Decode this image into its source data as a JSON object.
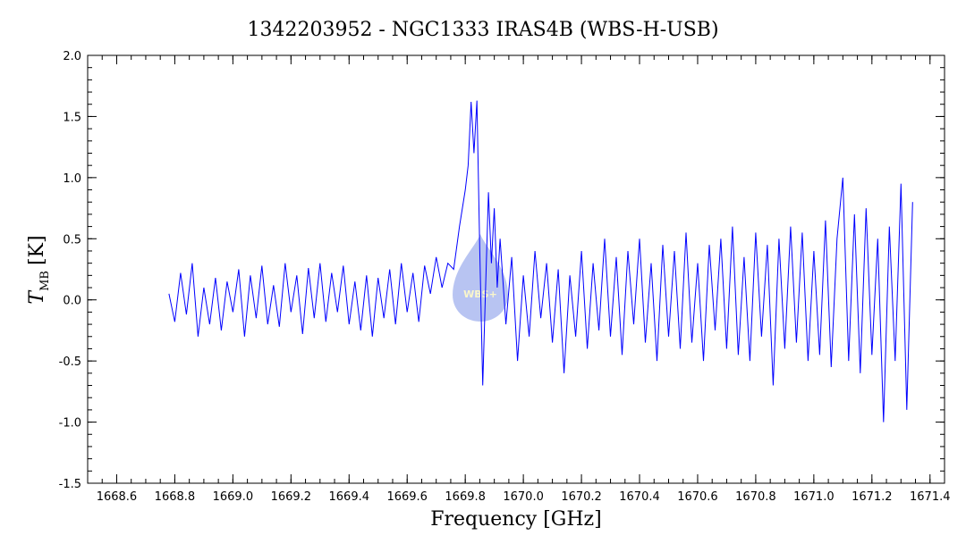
{
  "chart_data": {
    "type": "line",
    "title": "1342203952 - NGC1333 IRAS4B (WBS-H-USB)",
    "xlabel": "Frequency [GHz]",
    "ylabel_main": "T",
    "ylabel_sub": "MB",
    "ylabel_unit": "[K]",
    "xlim": [
      1668.5,
      1671.45
    ],
    "ylim": [
      -1.5,
      2.0
    ],
    "xticks": [
      1668.6,
      1668.8,
      1669.0,
      1669.2,
      1669.4,
      1669.6,
      1669.8,
      1670.0,
      1670.2,
      1670.4,
      1670.6,
      1670.8,
      1671.0,
      1671.2,
      1671.4
    ],
    "xtick_labels": [
      "1668.6",
      "1668.8",
      "1669.0",
      "1669.2",
      "1669.4",
      "1669.6",
      "1669.8",
      "1670.0",
      "1670.2",
      "1670.4",
      "1670.6",
      "1670.8",
      "1671.0",
      "1671.2",
      "1671.4"
    ],
    "yticks": [
      -1.5,
      -1.0,
      -0.5,
      0.0,
      0.5,
      1.0,
      1.5,
      2.0
    ],
    "ytick_labels": [
      "-1.5",
      "-1.0",
      "-0.5",
      "0.0",
      "0.5",
      "1.0",
      "1.5",
      "2.0"
    ],
    "grid": false,
    "series_color": "#0000ff",
    "series": [
      {
        "x": [
          1668.78,
          1668.8,
          1668.82,
          1668.84,
          1668.86,
          1668.88,
          1668.9,
          1668.92,
          1668.94,
          1668.96,
          1668.98,
          1669.0,
          1669.02,
          1669.04,
          1669.06,
          1669.08,
          1669.1,
          1669.12,
          1669.14,
          1669.16,
          1669.18,
          1669.2,
          1669.22,
          1669.24,
          1669.26,
          1669.28,
          1669.3,
          1669.32,
          1669.34,
          1669.36,
          1669.38,
          1669.4,
          1669.42,
          1669.44,
          1669.46,
          1669.48,
          1669.5,
          1669.52,
          1669.54,
          1669.56,
          1669.58,
          1669.6,
          1669.62,
          1669.64,
          1669.66,
          1669.68,
          1669.7,
          1669.72,
          1669.74,
          1669.76,
          1669.78,
          1669.8,
          1669.81,
          1669.82,
          1669.83,
          1669.84,
          1669.85,
          1669.86,
          1669.87,
          1669.88,
          1669.89,
          1669.9,
          1669.91,
          1669.92,
          1669.94,
          1669.96,
          1669.98,
          1670.0,
          1670.02,
          1670.04,
          1670.06,
          1670.08,
          1670.1,
          1670.12,
          1670.14,
          1670.16,
          1670.18,
          1670.2,
          1670.22,
          1670.24,
          1670.26,
          1670.28,
          1670.3,
          1670.32,
          1670.34,
          1670.36,
          1670.38,
          1670.4,
          1670.42,
          1670.44,
          1670.46,
          1670.48,
          1670.5,
          1670.52,
          1670.54,
          1670.56,
          1670.58,
          1670.6,
          1670.62,
          1670.64,
          1670.66,
          1670.68,
          1670.7,
          1670.72,
          1670.74,
          1670.76,
          1670.78,
          1670.8,
          1670.82,
          1670.84,
          1670.86,
          1670.88,
          1670.9,
          1670.92,
          1670.94,
          1670.96,
          1670.98,
          1671.0,
          1671.02,
          1671.04,
          1671.06,
          1671.08,
          1671.1,
          1671.12,
          1671.14,
          1671.16,
          1671.18,
          1671.2,
          1671.22,
          1671.24,
          1671.26,
          1671.28,
          1671.3,
          1671.32,
          1671.34
        ],
        "y": [
          0.05,
          -0.18,
          0.22,
          -0.12,
          0.3,
          -0.3,
          0.1,
          -0.2,
          0.18,
          -0.25,
          0.15,
          -0.1,
          0.25,
          -0.3,
          0.2,
          -0.15,
          0.28,
          -0.2,
          0.12,
          -0.22,
          0.3,
          -0.1,
          0.2,
          -0.28,
          0.26,
          -0.15,
          0.3,
          -0.18,
          0.22,
          -0.1,
          0.28,
          -0.2,
          0.15,
          -0.25,
          0.2,
          -0.3,
          0.18,
          -0.15,
          0.25,
          -0.2,
          0.3,
          -0.1,
          0.22,
          -0.18,
          0.28,
          0.05,
          0.35,
          0.1,
          0.3,
          0.25,
          0.6,
          0.9,
          1.1,
          1.62,
          1.2,
          1.63,
          0.4,
          -0.7,
          0.1,
          0.88,
          0.3,
          0.75,
          0.1,
          0.5,
          -0.2,
          0.35,
          -0.5,
          0.2,
          -0.3,
          0.4,
          -0.15,
          0.3,
          -0.35,
          0.25,
          -0.6,
          0.2,
          -0.3,
          0.4,
          -0.4,
          0.3,
          -0.25,
          0.5,
          -0.3,
          0.35,
          -0.45,
          0.4,
          -0.2,
          0.5,
          -0.35,
          0.3,
          -0.5,
          0.45,
          -0.3,
          0.4,
          -0.4,
          0.55,
          -0.35,
          0.3,
          -0.5,
          0.45,
          -0.25,
          0.5,
          -0.4,
          0.6,
          -0.45,
          0.35,
          -0.5,
          0.55,
          -0.3,
          0.45,
          -0.7,
          0.5,
          -0.4,
          0.6,
          -0.35,
          0.55,
          -0.5,
          0.4,
          -0.45,
          0.65,
          -0.55,
          0.5,
          1.0,
          -0.5,
          0.7,
          -0.6,
          0.75,
          -0.45,
          0.5,
          -1.0,
          0.6,
          -0.5,
          0.95,
          -0.9,
          0.8
        ]
      }
    ]
  }
}
